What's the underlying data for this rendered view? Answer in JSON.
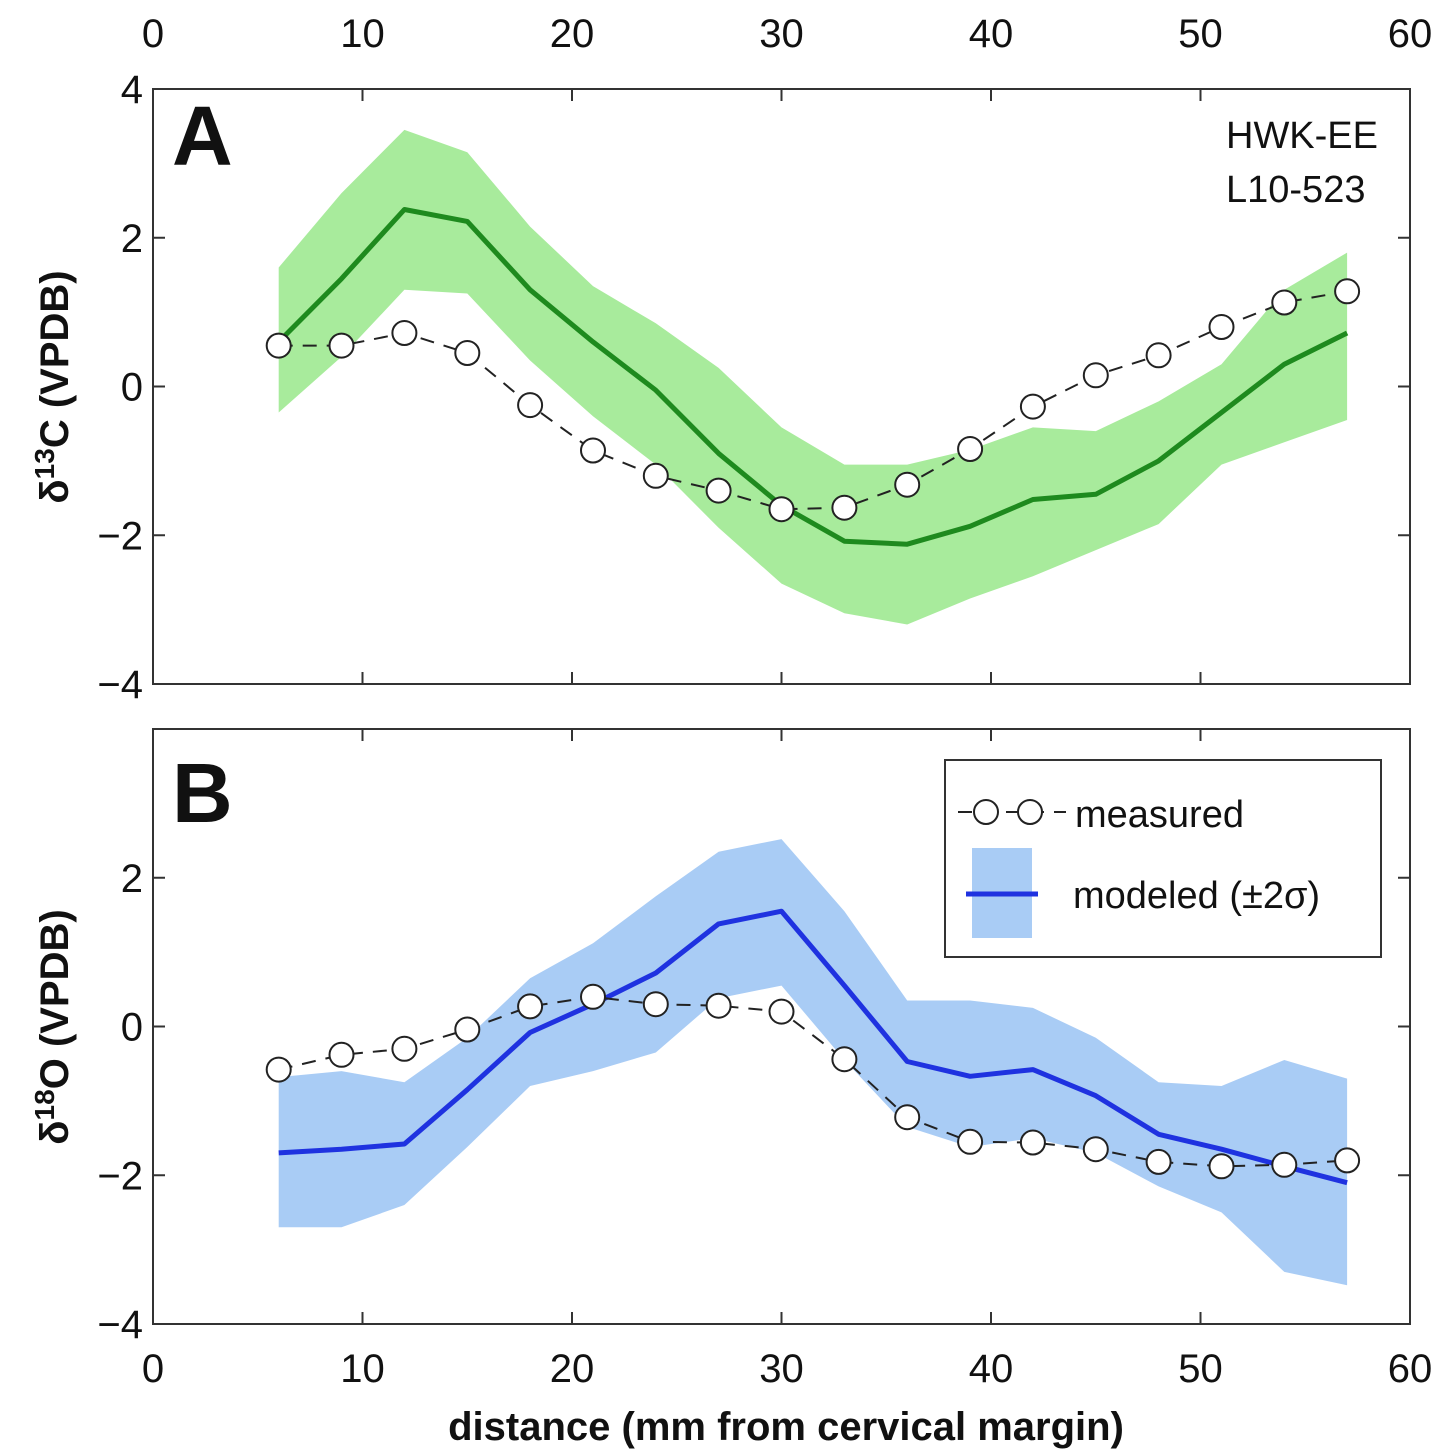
{
  "chart_data": [
    {
      "type": "line",
      "panel": "A",
      "title": "",
      "ylabel": "δ13C (VPDB)",
      "ylabel_parts": {
        "prefix": "δ",
        "sup": "13",
        "suffix": "C (VPDB)"
      },
      "xlabel": "",
      "xlim": [
        0,
        60
      ],
      "ylim": [
        -4,
        4
      ],
      "xticks": [
        0,
        10,
        20,
        30,
        40,
        50,
        60
      ],
      "yticks": [
        -4,
        -2,
        0,
        2,
        4
      ],
      "x_ticks_on": "top",
      "annotations": [
        "HWK-EE",
        "L10-523"
      ],
      "fill_color": "#a8eb9c",
      "line_color": "#1e8a1e",
      "series": [
        {
          "name": "measured",
          "style": "dashed-open-circles",
          "x": [
            6,
            9,
            12,
            15,
            18,
            21,
            24,
            27,
            30,
            33,
            36,
            39,
            42,
            45,
            48,
            51,
            54,
            57
          ],
          "y": [
            0.55,
            0.55,
            0.72,
            0.45,
            -0.25,
            -0.86,
            -1.2,
            -1.4,
            -1.65,
            -1.63,
            -1.32,
            -0.84,
            -0.27,
            0.15,
            0.42,
            0.8,
            1.13,
            1.28
          ]
        },
        {
          "name": "modeled (±2σ)",
          "style": "line-with-band",
          "x": [
            6,
            9,
            12,
            15,
            18,
            21,
            24,
            27,
            30,
            33,
            36,
            39,
            42,
            45,
            48,
            51,
            54,
            57
          ],
          "y": [
            0.6,
            1.45,
            2.38,
            2.22,
            1.3,
            0.6,
            -0.05,
            -0.9,
            -1.6,
            -2.08,
            -2.12,
            -1.88,
            -1.52,
            -1.45,
            -1.0,
            -0.35,
            0.3,
            0.72
          ],
          "upper": [
            1.6,
            2.6,
            3.45,
            3.15,
            2.15,
            1.35,
            0.85,
            0.25,
            -0.55,
            -1.05,
            -1.05,
            -0.85,
            -0.55,
            -0.6,
            -0.2,
            0.3,
            1.3,
            1.8
          ],
          "lower": [
            -0.35,
            0.4,
            1.3,
            1.25,
            0.35,
            -0.4,
            -1.05,
            -1.9,
            -2.65,
            -3.05,
            -3.2,
            -2.85,
            -2.55,
            -2.2,
            -1.85,
            -1.05,
            -0.75,
            -0.45
          ]
        }
      ]
    },
    {
      "type": "line",
      "panel": "B",
      "title": "",
      "ylabel": "δ18O (VPDB)",
      "ylabel_parts": {
        "prefix": "δ",
        "sup": "18",
        "suffix": "O (VPDB)"
      },
      "xlabel": "distance (mm from cervical margin)",
      "xlim": [
        0,
        60
      ],
      "ylim": [
        -4,
        4
      ],
      "xticks": [
        0,
        10,
        20,
        30,
        40,
        50,
        60
      ],
      "yticks": [
        -4,
        -2,
        0,
        2
      ],
      "x_ticks_on": "bottom",
      "legend_position": "top-right",
      "legend": [
        "measured",
        "modeled (±2σ)"
      ],
      "fill_color": "#a9ccf5",
      "line_color": "#1f32e0",
      "series": [
        {
          "name": "measured",
          "style": "dashed-open-circles",
          "x": [
            6,
            9,
            12,
            15,
            18,
            21,
            24,
            27,
            30,
            33,
            36,
            39,
            42,
            45,
            48,
            51,
            54,
            57
          ],
          "y": [
            -0.58,
            -0.38,
            -0.3,
            -0.04,
            0.27,
            0.4,
            0.3,
            0.28,
            0.2,
            -0.44,
            -1.22,
            -1.55,
            -1.56,
            -1.65,
            -1.82,
            -1.88,
            -1.86,
            -1.8
          ]
        },
        {
          "name": "modeled (±2σ)",
          "style": "line-with-band",
          "x": [
            6,
            9,
            12,
            15,
            18,
            21,
            24,
            27,
            30,
            33,
            36,
            39,
            42,
            45,
            48,
            51,
            54,
            57
          ],
          "y": [
            -1.7,
            -1.65,
            -1.58,
            -0.85,
            -0.08,
            0.3,
            0.72,
            1.38,
            1.55,
            0.55,
            -0.47,
            -0.67,
            -0.58,
            -0.93,
            -1.45,
            -1.65,
            -1.88,
            -2.1
          ],
          "upper": [
            -0.68,
            -0.6,
            -0.75,
            -0.15,
            0.65,
            1.12,
            1.75,
            2.35,
            2.52,
            1.55,
            0.35,
            0.35,
            0.25,
            -0.15,
            -0.75,
            -0.8,
            -0.45,
            -0.7
          ],
          "lower": [
            -2.7,
            -2.7,
            -2.4,
            -1.62,
            -0.8,
            -0.6,
            -0.35,
            0.38,
            0.55,
            -0.45,
            -1.35,
            -1.62,
            -1.5,
            -1.7,
            -2.15,
            -2.5,
            -3.3,
            -3.48
          ]
        }
      ]
    }
  ]
}
